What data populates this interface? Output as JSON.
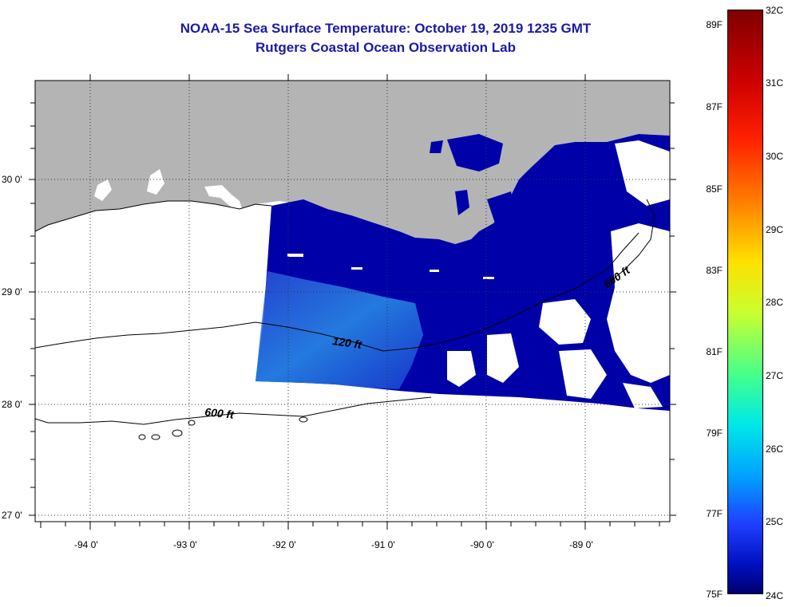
{
  "title": {
    "line1": "NOAA-15 Sea Surface Temperature:  October 19, 2019 1235 GMT",
    "line2": "Rutgers Coastal Ocean Observation Lab"
  },
  "axes": {
    "lat_labels": [
      "30 0'",
      "29 0'",
      "28 0'",
      "27 0'"
    ],
    "lon_labels": [
      "-94 0'",
      "-93 0'",
      "-92 0'",
      "-91 0'",
      "-90 0'",
      "-89 0'"
    ]
  },
  "contours": {
    "label_120": "120 ft",
    "label_600a": "600 ft",
    "label_600b": "600 ft"
  },
  "colorbar": {
    "fahrenheit": [
      "89F",
      "87F",
      "85F",
      "83F",
      "81F",
      "79F",
      "77F",
      "75F"
    ],
    "celsius": [
      "32C",
      "31C",
      "30C",
      "29C",
      "28C",
      "27C",
      "26C",
      "25C",
      "24C"
    ]
  },
  "colors": {
    "land": "#b4b4b4",
    "title": "#1a1aa6",
    "sst_warm": "#0000a8",
    "sst_cool": "#2a7fe0"
  }
}
